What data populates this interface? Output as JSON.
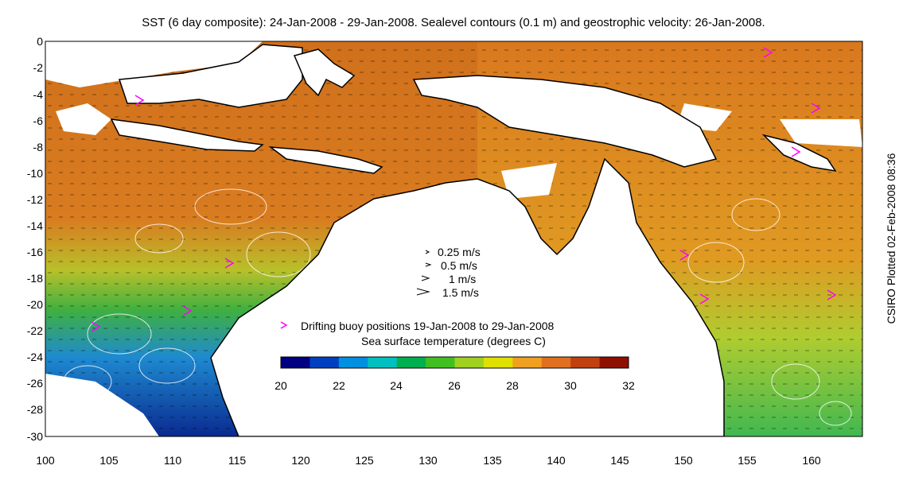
{
  "title": "SST (6 day composite): 24-Jan-2008 - 29-Jan-2008. Sealevel contours (0.1 m) and geostrophic velocity: 26-Jan-2008.",
  "side_label": "CSIRO Plotted 02-Feb-2008 08:36",
  "axes": {
    "x_ticks": [
      "100",
      "105",
      "110",
      "115",
      "120",
      "125",
      "130",
      "135",
      "140",
      "145",
      "150",
      "155",
      "160"
    ],
    "y_ticks": [
      "0",
      "-2",
      "-4",
      "-6",
      "-8",
      "-10",
      "-12",
      "-14",
      "-16",
      "-18",
      "-20",
      "-22",
      "-24",
      "-26",
      "-28",
      "-30"
    ],
    "xlim": [
      100,
      164
    ],
    "ylim": [
      -30,
      0
    ]
  },
  "velocity_legend": [
    {
      "label": "0.25 m/s",
      "speed": 0.25
    },
    {
      "label": "0.5 m/s",
      "speed": 0.5
    },
    {
      "label": "1 m/s",
      "speed": 1
    },
    {
      "label": "1.5 m/s",
      "speed": 1.5
    }
  ],
  "buoy_legend": "Drifting buoy positions 19-Jan-2008 to 29-Jan-2008",
  "colorbar": {
    "title": "Sea surface temperature (degrees C)",
    "ticks": [
      "20",
      "22",
      "24",
      "26",
      "28",
      "30",
      "32"
    ],
    "range": [
      20,
      32
    ],
    "colors": [
      "#000080",
      "#0040c0",
      "#0090e0",
      "#00c0c0",
      "#00b050",
      "#40c020",
      "#a0d020",
      "#e0e000",
      "#f0a020",
      "#e07020",
      "#c04010",
      "#901000"
    ]
  },
  "colors": {
    "land": "#ffffff",
    "coast": "#000000",
    "contour": "#ffffff",
    "buoy": "#ff00ff",
    "warm_sst": "#d9731f",
    "cool_sst": "#1a4ba0"
  }
}
